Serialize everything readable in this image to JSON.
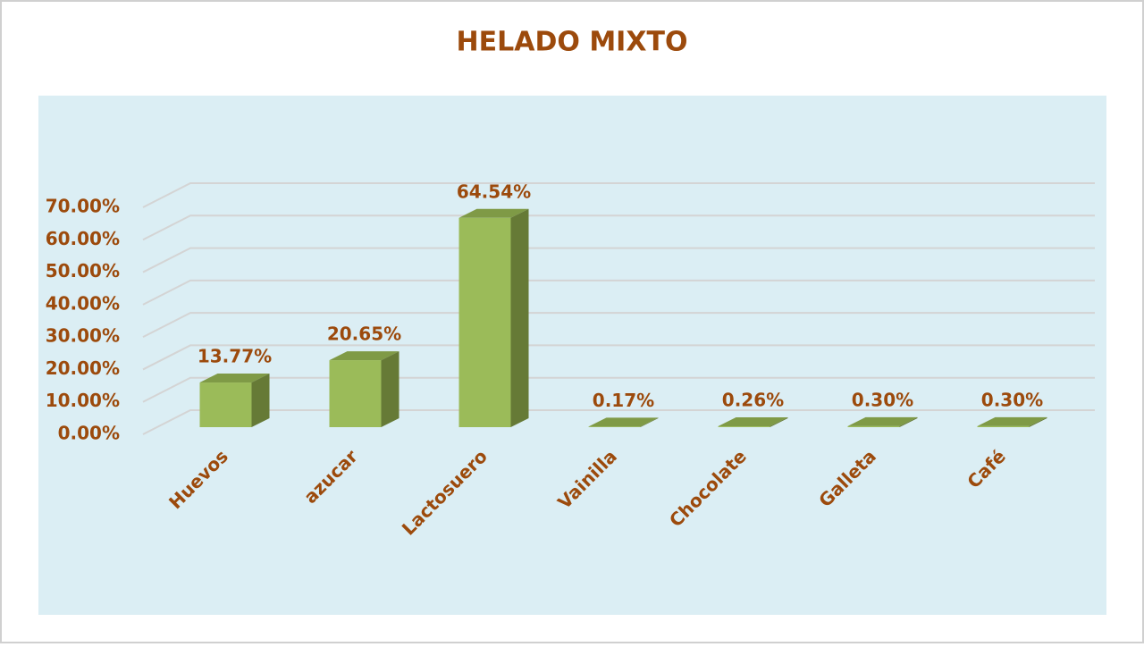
{
  "chart_data": {
    "type": "bar3d",
    "title": "HELADO MIXTO",
    "categories": [
      "Huevos",
      "azucar",
      "Lactosuero",
      "Vainilla",
      "Chocolate",
      "Galleta",
      "Café"
    ],
    "values": [
      13.77,
      20.65,
      64.54,
      0.17,
      0.26,
      0.3,
      0.3
    ],
    "value_labels": [
      "13.77%",
      "20.65%",
      "64.54%",
      "0.17%",
      "0.26%",
      "0.30%",
      "0.30%"
    ],
    "color": "#9bbb59",
    "ylim": [
      0,
      70
    ],
    "yticks": [
      {
        "value": 0,
        "label": "0.00%"
      },
      {
        "value": 10,
        "label": "10.00%"
      },
      {
        "value": 20,
        "label": "20.00%"
      },
      {
        "value": 30,
        "label": "30.00%"
      },
      {
        "value": 40,
        "label": "40.00%"
      },
      {
        "value": 50,
        "label": "50.00%"
      },
      {
        "value": 60,
        "label": "60.00%"
      },
      {
        "value": 70,
        "label": "70.00%"
      }
    ],
    "grid": true
  }
}
